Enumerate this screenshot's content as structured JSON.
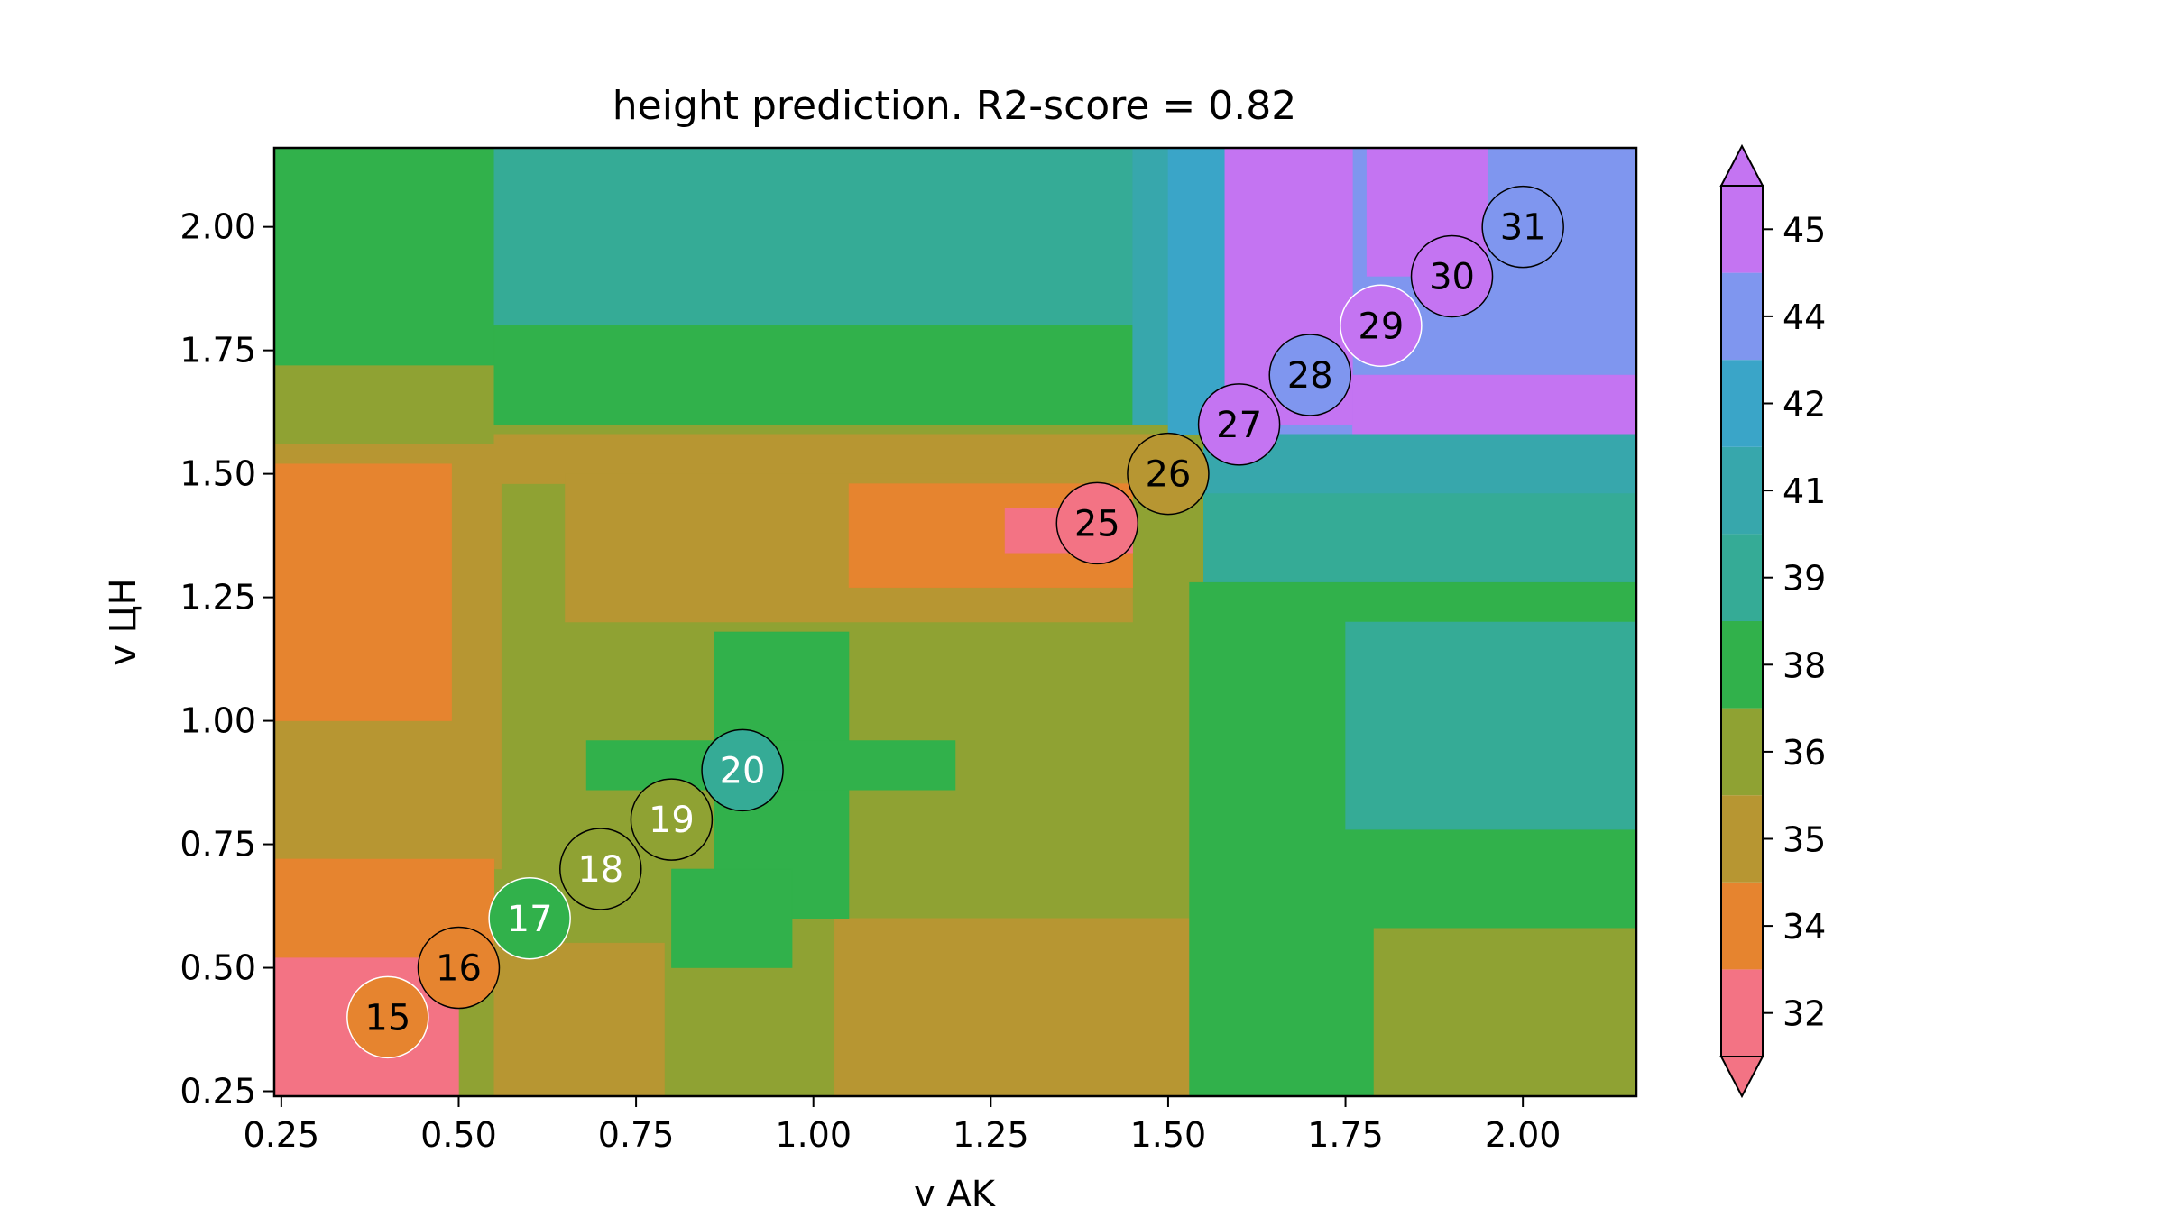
{
  "chart_data": {
    "type": "heatmap",
    "title": "height prediction. R2-score = 0.82",
    "xlabel": "v AK",
    "ylabel": "v ЦН",
    "xlim": [
      0.24,
      2.16
    ],
    "ylim": [
      0.24,
      2.16
    ],
    "x_ticks": [
      0.25,
      0.5,
      0.75,
      1.0,
      1.25,
      1.5,
      1.75,
      2.0
    ],
    "x_tick_labels": [
      "0.25",
      "0.50",
      "0.75",
      "1.00",
      "1.25",
      "1.50",
      "1.75",
      "2.00"
    ],
    "y_ticks": [
      0.25,
      0.5,
      0.75,
      1.0,
      1.25,
      1.5,
      1.75,
      2.0
    ],
    "y_tick_labels": [
      "0.25",
      "0.50",
      "0.75",
      "1.00",
      "1.25",
      "1.50",
      "1.75",
      "2.00"
    ],
    "grid": false,
    "colorbar": {
      "levels": [
        32,
        34,
        35,
        36,
        38,
        39,
        41,
        42,
        44,
        45
      ],
      "tick_labels": [
        "32",
        "34",
        "35",
        "36",
        "38",
        "39",
        "41",
        "42",
        "44",
        "45"
      ],
      "colors": [
        "#f37384",
        "#e6842f",
        "#b79632",
        "#8fa233",
        "#31b14b",
        "#35ab96",
        "#37a7ac",
        "#3aa5c8",
        "#7f96ef",
        "#c474f2"
      ],
      "extend": "both"
    },
    "regions": [
      {
        "level": 36,
        "x": [
          0.24,
          2.16
        ],
        "y": [
          0.24,
          2.16
        ]
      },
      {
        "level": 35,
        "x": [
          0.24,
          0.56
        ],
        "y": [
          0.7,
          1.56
        ]
      },
      {
        "level": 34,
        "x": [
          0.24,
          0.32
        ],
        "y": [
          0.24,
          0.72
        ]
      },
      {
        "level": 34,
        "x": [
          0.24,
          0.55
        ],
        "y": [
          0.52,
          0.72
        ]
      },
      {
        "level": 34,
        "x": [
          0.24,
          0.49
        ],
        "y": [
          1.0,
          1.52
        ]
      },
      {
        "level": 32,
        "x": [
          0.24,
          0.5
        ],
        "y": [
          0.24,
          0.52
        ]
      },
      {
        "level": 35,
        "x": [
          0.55,
          0.79
        ],
        "y": [
          0.24,
          0.55
        ]
      },
      {
        "level": 35,
        "x": [
          1.03,
          1.54
        ],
        "y": [
          0.24,
          0.6
        ]
      },
      {
        "level": 38,
        "x": [
          0.24,
          0.55
        ],
        "y": [
          1.72,
          2.16
        ]
      },
      {
        "level": 39,
        "x": [
          0.55,
          1.45
        ],
        "y": [
          1.8,
          2.16
        ]
      },
      {
        "level": 38,
        "x": [
          0.55,
          1.5
        ],
        "y": [
          1.6,
          1.8
        ]
      },
      {
        "level": 35,
        "x": [
          0.55,
          1.5
        ],
        "y": [
          1.48,
          1.58
        ]
      },
      {
        "level": 35,
        "x": [
          0.65,
          1.45
        ],
        "y": [
          1.2,
          1.5
        ]
      },
      {
        "level": 34,
        "x": [
          1.05,
          1.45
        ],
        "y": [
          1.27,
          1.48
        ]
      },
      {
        "level": 32,
        "x": [
          1.27,
          1.45
        ],
        "y": [
          1.34,
          1.43
        ]
      },
      {
        "level": 41,
        "x": [
          1.45,
          1.55
        ],
        "y": [
          1.6,
          2.16
        ]
      },
      {
        "level": 42,
        "x": [
          1.5,
          1.58
        ],
        "y": [
          1.58,
          2.16
        ]
      },
      {
        "level": 44,
        "x": [
          1.58,
          2.16
        ],
        "y": [
          1.58,
          2.16
        ]
      },
      {
        "level": 45,
        "x": [
          1.58,
          1.76
        ],
        "y": [
          1.6,
          2.16
        ]
      },
      {
        "level": 45,
        "x": [
          1.76,
          2.16
        ],
        "y": [
          1.58,
          1.7
        ]
      },
      {
        "level": 45,
        "x": [
          1.78,
          1.95
        ],
        "y": [
          1.9,
          2.16
        ]
      },
      {
        "level": 41,
        "x": [
          1.55,
          2.16
        ],
        "y": [
          1.46,
          1.58
        ]
      },
      {
        "level": 39,
        "x": [
          1.55,
          2.16
        ],
        "y": [
          1.28,
          1.46
        ]
      },
      {
        "level": 38,
        "x": [
          1.53,
          2.16
        ],
        "y": [
          0.24,
          1.28
        ]
      },
      {
        "level": 39,
        "x": [
          1.75,
          2.16
        ],
        "y": [
          0.78,
          1.2
        ]
      },
      {
        "level": 36,
        "x": [
          1.79,
          2.16
        ],
        "y": [
          0.24,
          0.58
        ]
      },
      {
        "level": 38,
        "x": [
          0.86,
          1.05
        ],
        "y": [
          0.6,
          1.18
        ]
      },
      {
        "level": 38,
        "x": [
          0.68,
          1.2
        ],
        "y": [
          0.86,
          0.96
        ]
      },
      {
        "level": 38,
        "x": [
          0.8,
          0.97
        ],
        "y": [
          0.5,
          0.7
        ]
      }
    ],
    "points": [
      {
        "x": 0.4,
        "y": 0.4,
        "label": "15",
        "level": 34,
        "edge": "white",
        "text_color": "black"
      },
      {
        "x": 0.5,
        "y": 0.5,
        "label": "16",
        "level": 34,
        "edge": "black",
        "text_color": "black"
      },
      {
        "x": 0.6,
        "y": 0.6,
        "label": "17",
        "level": 38,
        "edge": "white",
        "text_color": "white"
      },
      {
        "x": 0.7,
        "y": 0.7,
        "label": "18",
        "level": 36,
        "edge": "black",
        "text_color": "white"
      },
      {
        "x": 0.8,
        "y": 0.8,
        "label": "19",
        "level": 36,
        "edge": "black",
        "text_color": "white"
      },
      {
        "x": 0.9,
        "y": 0.9,
        "label": "20",
        "level": 39,
        "edge": "black",
        "text_color": "white"
      },
      {
        "x": 1.4,
        "y": 1.4,
        "label": "25",
        "level": 32,
        "edge": "black",
        "text_color": "black"
      },
      {
        "x": 1.5,
        "y": 1.5,
        "label": "26",
        "level": 35,
        "edge": "black",
        "text_color": "black"
      },
      {
        "x": 1.6,
        "y": 1.6,
        "label": "27",
        "level": 45,
        "edge": "black",
        "text_color": "black"
      },
      {
        "x": 1.7,
        "y": 1.7,
        "label": "28",
        "level": 44,
        "edge": "black",
        "text_color": "black"
      },
      {
        "x": 1.8,
        "y": 1.8,
        "label": "29",
        "level": 45,
        "edge": "white",
        "text_color": "black"
      },
      {
        "x": 1.9,
        "y": 1.9,
        "label": "30",
        "level": 45,
        "edge": "black",
        "text_color": "black"
      },
      {
        "x": 2.0,
        "y": 2.0,
        "label": "31",
        "level": 44,
        "edge": "black",
        "text_color": "black"
      }
    ]
  }
}
